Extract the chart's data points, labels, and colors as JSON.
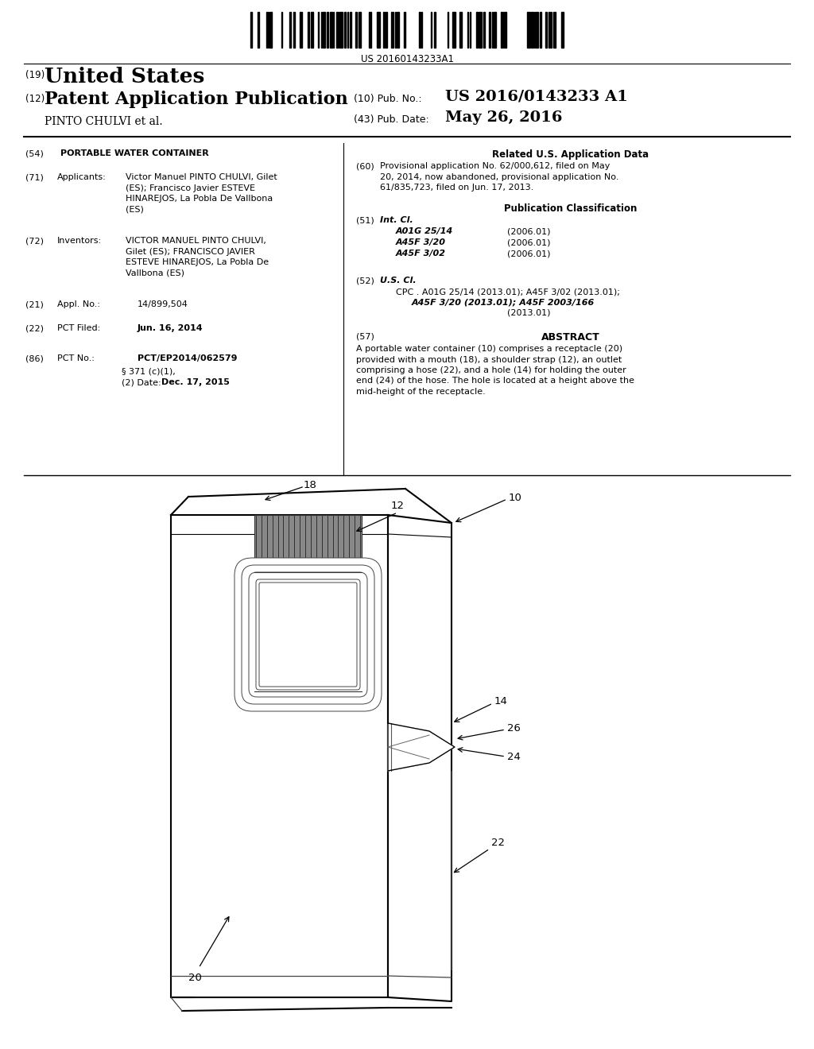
{
  "background_color": "#ffffff",
  "barcode_text": "US 20160143233A1",
  "header": {
    "country_label": "(19)",
    "country": "United States",
    "type_label": "(12)",
    "type": "Patent Application Publication",
    "pub_no_label": "(10) Pub. No.:",
    "pub_no": "US 2016/0143233 A1",
    "inventors_line": "PINTO CHULVI et al.",
    "pub_date_label": "(43) Pub. Date:",
    "pub_date": "May 26, 2016"
  },
  "left_col": {
    "title_label": "(54)",
    "title": "PORTABLE WATER CONTAINER",
    "applicants_label": "(71)",
    "applicants_key": "Applicants:",
    "applicants_val_line1": "Victor Manuel PINTO CHULVI, Gilet",
    "applicants_val_line2": "(ES); Francisco Javier ESTEVE",
    "applicants_val_line3": "HINAREJOS, La Pobla De Vallbona",
    "applicants_val_line4": "(ES)",
    "inventors_label": "(72)",
    "inventors_key": "Inventors:",
    "inventors_val_line1": "VICTOR MANUEL PINTO CHULVI,",
    "inventors_val_line2": "Gilet (ES); FRANCISCO JAVIER",
    "inventors_val_line3": "ESTEVE HINAREJOS, La Pobla De",
    "inventors_val_line4": "Vallbona (ES)",
    "appl_no_label": "(21)",
    "appl_no_key": "Appl. No.:",
    "appl_no_val": "14/899,504",
    "pct_filed_label": "(22)",
    "pct_filed_key": "PCT Filed:",
    "pct_filed_val": "Jun. 16, 2014",
    "pct_no_label": "(86)",
    "pct_no_key": "PCT No.:",
    "pct_no_val": "PCT/EP2014/062579",
    "pct_371": "§ 371 (c)(1),",
    "pct_date_key": "(2) Date:",
    "pct_date_val": "Dec. 17, 2015"
  },
  "right_col": {
    "related_title": "Related U.S. Application Data",
    "provisional_label": "(60)",
    "provisional_line1": "Provisional application No. 62/000,612, filed on May",
    "provisional_line2": "20, 2014, now abandoned, provisional application No.",
    "provisional_line3": "61/835,723, filed on Jun. 17, 2013.",
    "pub_class_title": "Publication Classification",
    "intcl_label": "(51)",
    "intcl_key": "Int. Cl.",
    "intcl_entries": [
      [
        "A01G 25/14",
        "(2006.01)"
      ],
      [
        "A45F 3/20",
        "(2006.01)"
      ],
      [
        "A45F 3/02",
        "(2006.01)"
      ]
    ],
    "uscl_label": "(52)",
    "uscl_key": "U.S. Cl.",
    "uscl_line1": "CPC . A01G 25/14 (2013.01); A45F 3/02 (2013.01);",
    "uscl_line2": "A45F 3/20 (2013.01); A45F 2003/166",
    "uscl_line3": "(2013.01)",
    "abstract_label": "(57)",
    "abstract_title": "ABSTRACT",
    "abstract_line1": "A portable water container (10) comprises a receptacle (20)",
    "abstract_line2": "provided with a mouth (18), a shoulder strap (12), an outlet",
    "abstract_line3": "comprising a hose (22), and a hole (14) for holding the outer",
    "abstract_line4": "end (24) of the hose. The hole is located at a height above the",
    "abstract_line5": "mid-height of the receptacle."
  }
}
